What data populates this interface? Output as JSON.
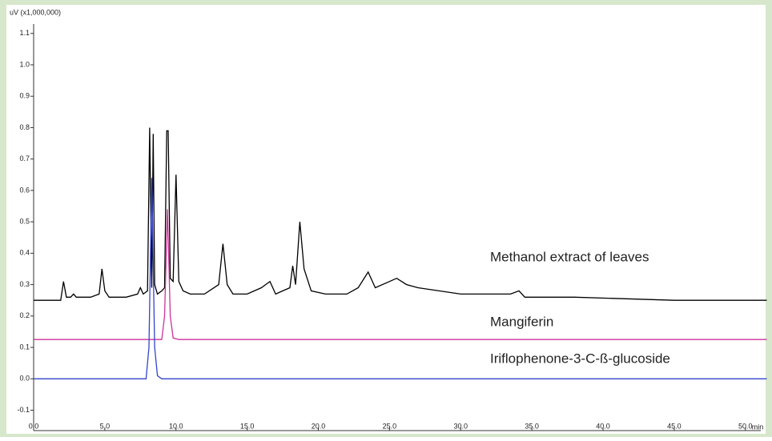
{
  "chart_data": {
    "type": "line",
    "y_unit_label": "uV (x1,000,000)",
    "x_unit_label": "min",
    "xlim": [
      0,
      51.7
    ],
    "ylim": [
      -0.165,
      1.13
    ],
    "xticks": [
      {
        "value": 0,
        "label": "0.0"
      },
      {
        "value": 5,
        "label": "5.0"
      },
      {
        "value": 10,
        "label": "10.0"
      },
      {
        "value": 15,
        "label": "15.0"
      },
      {
        "value": 20,
        "label": "20.0"
      },
      {
        "value": 25,
        "label": "25.0"
      },
      {
        "value": 30,
        "label": "30.0"
      },
      {
        "value": 35,
        "label": "35.0"
      },
      {
        "value": 40,
        "label": "40.0"
      },
      {
        "value": 45,
        "label": "45.0"
      },
      {
        "value": 50,
        "label": "50.0"
      }
    ],
    "yticks": [
      -0.1,
      {
        "value": 0,
        "label": "0.0"
      },
      0.1,
      0.2,
      0.3,
      0.4,
      0.5,
      0.6,
      0.7,
      0.8,
      0.9,
      {
        "value": 1,
        "label": "1.0"
      },
      1.1
    ],
    "series": [
      {
        "name": "Methanol extract of leaves",
        "color": "#000000",
        "x": [
          0,
          1.9,
          2.1,
          2.3,
          2.6,
          2.8,
          3.0,
          4.0,
          4.6,
          4.8,
          5.0,
          5.3,
          6.5,
          7.3,
          7.5,
          7.7,
          8.0,
          8.15,
          8.3,
          8.4,
          8.5,
          8.7,
          9.0,
          9.2,
          9.35,
          9.45,
          9.6,
          9.8,
          10.0,
          10.2,
          10.5,
          11.0,
          12.0,
          13.0,
          13.3,
          13.6,
          14.0,
          15.0,
          16.0,
          16.3,
          16.6,
          17.0,
          17.5,
          18.0,
          18.2,
          18.4,
          18.7,
          19.0,
          19.5,
          20.5,
          22.0,
          22.8,
          23.5,
          24.0,
          25.0,
          25.5,
          26.2,
          27.0,
          30.0,
          33.5,
          34.1,
          34.5,
          38.0,
          45.0,
          51.5
        ],
        "values": [
          0.25,
          0.25,
          0.31,
          0.26,
          0.26,
          0.27,
          0.26,
          0.26,
          0.27,
          0.35,
          0.28,
          0.26,
          0.26,
          0.27,
          0.29,
          0.27,
          0.28,
          0.8,
          0.29,
          0.78,
          0.3,
          0.27,
          0.28,
          0.29,
          0.79,
          0.79,
          0.32,
          0.31,
          0.65,
          0.31,
          0.28,
          0.27,
          0.27,
          0.3,
          0.43,
          0.3,
          0.27,
          0.27,
          0.29,
          0.3,
          0.31,
          0.27,
          0.28,
          0.29,
          0.36,
          0.3,
          0.5,
          0.35,
          0.28,
          0.27,
          0.27,
          0.29,
          0.34,
          0.29,
          0.31,
          0.32,
          0.3,
          0.29,
          0.27,
          0.27,
          0.28,
          0.26,
          0.26,
          0.25,
          0.25
        ]
      },
      {
        "name": "Mangiferin",
        "color": "#cc3399",
        "x": [
          0,
          9.0,
          9.2,
          9.4,
          9.6,
          9.8,
          10.2,
          34,
          51.5
        ],
        "values": [
          0.125,
          0.125,
          0.2,
          0.54,
          0.2,
          0.13,
          0.125,
          0.125,
          0.125
        ]
      },
      {
        "name": "Iriflophenone-3-C-ß-glucoside",
        "color": "#3344cc",
        "x": [
          0,
          7.9,
          8.1,
          8.3,
          8.5,
          8.7,
          9.0,
          51.5
        ],
        "values": [
          0,
          0,
          0.1,
          0.64,
          0.1,
          0.01,
          0,
          0
        ]
      }
    ]
  }
}
